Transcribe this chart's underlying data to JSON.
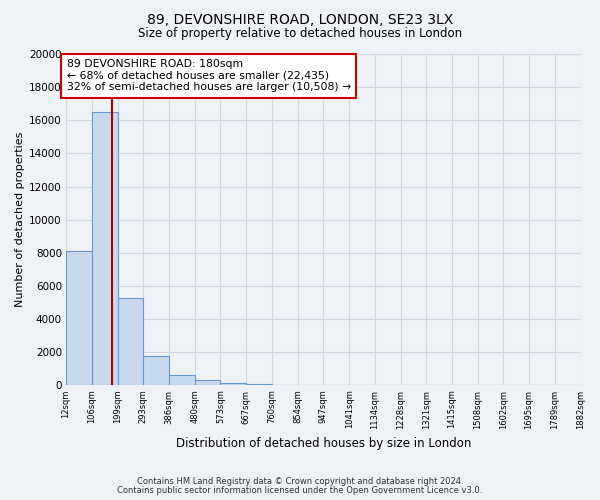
{
  "title": "89, DEVONSHIRE ROAD, LONDON, SE23 3LX",
  "subtitle": "Size of property relative to detached houses in London",
  "xlabel": "Distribution of detached houses by size in London",
  "ylabel": "Number of detached properties",
  "bin_labels": [
    "12sqm",
    "106sqm",
    "199sqm",
    "293sqm",
    "386sqm",
    "480sqm",
    "573sqm",
    "667sqm",
    "760sqm",
    "854sqm",
    "947sqm",
    "1041sqm",
    "1134sqm",
    "1228sqm",
    "1321sqm",
    "1415sqm",
    "1508sqm",
    "1602sqm",
    "1695sqm",
    "1789sqm",
    "1882sqm"
  ],
  "bin_edges": [
    12,
    106,
    199,
    293,
    386,
    480,
    573,
    667,
    760,
    854,
    947,
    1041,
    1134,
    1228,
    1321,
    1415,
    1508,
    1602,
    1695,
    1789,
    1882
  ],
  "bar_values": [
    8100,
    16500,
    5300,
    1800,
    650,
    300,
    150,
    100,
    50,
    20,
    10,
    8,
    5,
    4,
    3,
    2,
    2,
    2,
    2,
    2
  ],
  "bar_color": "#c8d9ee",
  "bar_edgecolor": "#6699cc",
  "property_size": 180,
  "annotation_line1": "89 DEVONSHIRE ROAD: 180sqm",
  "annotation_line2": "← 68% of detached houses are smaller (22,435)",
  "annotation_line3": "32% of semi-detached houses are larger (10,508) →",
  "red_line_color": "#aa0000",
  "annotation_box_facecolor": "#ffffff",
  "annotation_box_edgecolor": "#cc0000",
  "ylim": [
    0,
    20000
  ],
  "xlim_left": 12,
  "xlim_right": 1882,
  "background_color": "#eef2f7",
  "grid_color": "#d0d8e4",
  "footer1": "Contains HM Land Registry data © Crown copyright and database right 2024.",
  "footer2": "Contains public sector information licensed under the Open Government Licence v3.0."
}
